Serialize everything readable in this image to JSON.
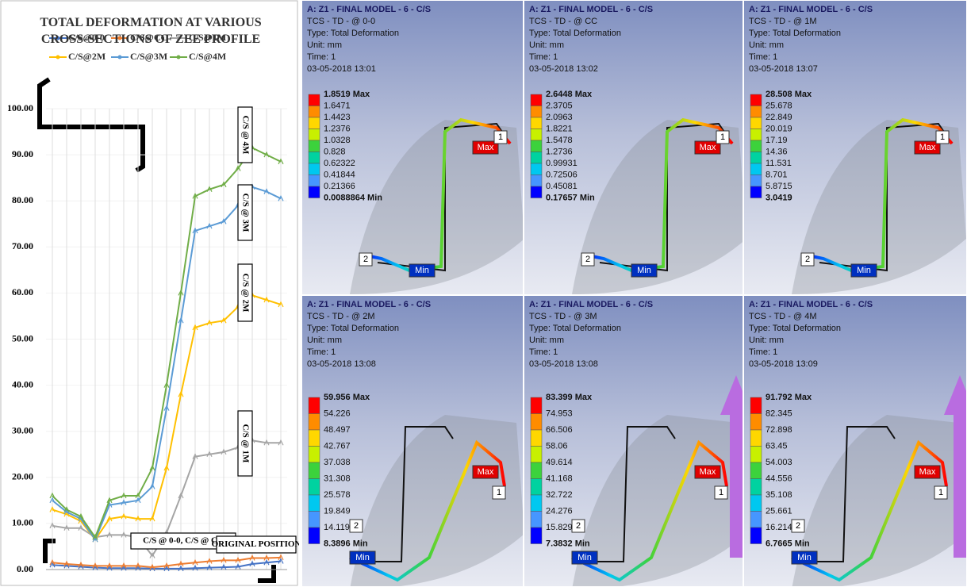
{
  "chart_data": {
    "type": "line",
    "title": "TOTAL DEFORMATION AT VARIOUS CROSS-SECTIONS OF ZEE PROFILE",
    "categories": [
      null,
      null,
      null,
      null,
      null,
      null,
      null,
      null,
      null,
      null,
      null,
      null,
      null,
      null,
      null,
      null,
      null
    ],
    "series": [
      {
        "name": "C/S@0-0",
        "color": "#4472c4",
        "values": [
          1,
          0.8,
          0.6,
          0.4,
          0.3,
          0.3,
          0.3,
          0.2,
          0.2,
          0.2,
          0.3,
          0.4,
          0.5,
          0.6,
          1.2,
          1.5,
          1.8
        ]
      },
      {
        "name": "C/S@CC",
        "color": "#ed7d31",
        "values": [
          1.5,
          1.2,
          1,
          0.8,
          0.8,
          0.8,
          0.8,
          0.5,
          0.8,
          1.2,
          1.5,
          1.8,
          2,
          2,
          2.5,
          2.5,
          2.6
        ]
      },
      {
        "name": "C/S@1M",
        "color": "#a5a5a5",
        "values": [
          9.5,
          9,
          9,
          7,
          7.5,
          7.5,
          7,
          3,
          8,
          16,
          24.5,
          25,
          25.5,
          26.5,
          28,
          27.5,
          27.5
        ]
      },
      {
        "name": "C/S@2M",
        "color": "#ffc000",
        "values": [
          13,
          12,
          10.5,
          6.5,
          11,
          11.5,
          11,
          11,
          22,
          38,
          52.5,
          53.5,
          54,
          57,
          59.5,
          58.5,
          57.5
        ]
      },
      {
        "name": "C/S@3M",
        "color": "#5b9bd5",
        "values": [
          15,
          12.5,
          11,
          6.5,
          14,
          14.5,
          15,
          18,
          35,
          54,
          73.5,
          74.5,
          75.5,
          79,
          83,
          82,
          80.5
        ]
      },
      {
        "name": "C/S@4M",
        "color": "#70ad47",
        "values": [
          16,
          13,
          11.5,
          7,
          15,
          16,
          16,
          22,
          40,
          60,
          81,
          82.5,
          83.5,
          87,
          91.5,
          90,
          88.5
        ]
      }
    ],
    "ylim": [
      0,
      100
    ],
    "yticks": [
      {
        "value": 0,
        "label": "0.00"
      },
      {
        "value": 10,
        "label": "10.00"
      },
      {
        "value": 20,
        "label": "20.00"
      },
      {
        "value": 30,
        "label": "30.00"
      },
      {
        "value": 40,
        "label": "40.00"
      },
      {
        "value": 50,
        "label": "50.00"
      },
      {
        "value": 60,
        "label": "60.00"
      },
      {
        "value": 70,
        "label": "70.00"
      },
      {
        "value": 80,
        "label": "80.00"
      },
      {
        "value": 90,
        "label": "90.00"
      },
      {
        "value": 100,
        "label": "100.00"
      }
    ],
    "grid": true,
    "annotations": [
      "C/S @ 4M",
      "C/S @ 3M",
      "C/S @ 2M",
      "C/S @ 1M",
      "C/S @ 0-0, C/S @ CC",
      "ORIGINAL POSITION"
    ]
  },
  "panels": [
    {
      "title": "A: Z1 - FINAL MODEL - 6 - C/S",
      "result": "TCS - TD - @ 0-0",
      "type": "Type: Total Deformation",
      "unit": "Unit: mm",
      "time": "Time: 1",
      "date": "03-05-2018 13:01",
      "legend": [
        "1.8519 Max",
        "1.6471",
        "1.4423",
        "1.2376",
        "1.0328",
        "0.828",
        "0.62322",
        "0.41844",
        "0.21366",
        "0.0088864 Min"
      ],
      "tags": [
        "Max",
        "Min",
        "1",
        "2"
      ]
    },
    {
      "title": "A: Z1 - FINAL MODEL - 6 - C/S",
      "result": "TCS - TD - @ CC",
      "type": "Type: Total Deformation",
      "unit": "Unit: mm",
      "time": "Time: 1",
      "date": "03-05-2018 13:02",
      "legend": [
        "2.6448 Max",
        "2.3705",
        "2.0963",
        "1.8221",
        "1.5478",
        "1.2736",
        "0.99931",
        "0.72506",
        "0.45081",
        "0.17657 Min"
      ],
      "tags": [
        "Max",
        "Min",
        "1",
        "2"
      ]
    },
    {
      "title": "A: Z1 - FINAL MODEL - 6 - C/S",
      "result": "TCS - TD - @ 1M",
      "type": "Type: Total Deformation",
      "unit": "Unit: mm",
      "time": "Time: 1",
      "date": "03-05-2018 13:07",
      "legend": [
        "28.508 Max",
        "25.678",
        "22.849",
        "20.019",
        "17.19",
        "14.36",
        "11.531",
        "8.701",
        "5.8715",
        "3.0419"
      ],
      "tags": [
        "Max",
        "Min",
        "1",
        "2"
      ]
    },
    {
      "title": "A: Z1 - FINAL MODEL - 6 - C/S",
      "result": "TCS - TD - @ 2M",
      "type": "Type: Total Deformation",
      "unit": "Unit: mm",
      "time": "Time: 1",
      "date": "03-05-2018 13:08",
      "legend": [
        "59.956 Max",
        "54.226",
        "48.497",
        "42.767",
        "37.038",
        "31.308",
        "25.578",
        "19.849",
        "14.119",
        "8.3896 Min"
      ],
      "tags": [
        "Max",
        "Min",
        "1",
        "2"
      ]
    },
    {
      "title": "A: Z1 - FINAL MODEL - 6 - C/S",
      "result": "TCS - TD - @ 3M",
      "type": "Type: Total Deformation",
      "unit": "Unit: mm",
      "time": "Time: 1",
      "date": "03-05-2018 13:08",
      "legend": [
        "83.399 Max",
        "74.953",
        "66.506",
        "58.06",
        "49.614",
        "41.168",
        "32.722",
        "24.276",
        "15.829",
        "7.3832 Min"
      ],
      "tags": [
        "Max",
        "Min",
        "1",
        "2"
      ]
    },
    {
      "title": "A: Z1 - FINAL MODEL - 6 - C/S",
      "result": "TCS - TD - @ 4M",
      "type": "Type: Total Deformation",
      "unit": "Unit: mm",
      "time": "Time: 1",
      "date": "03-05-2018 13:09",
      "legend": [
        "91.792 Max",
        "82.345",
        "72.898",
        "63.45",
        "54.003",
        "44.556",
        "35.108",
        "25.661",
        "16.214",
        "6.7665 Min"
      ],
      "tags": [
        "Max",
        "Min",
        "1",
        "2"
      ]
    }
  ]
}
